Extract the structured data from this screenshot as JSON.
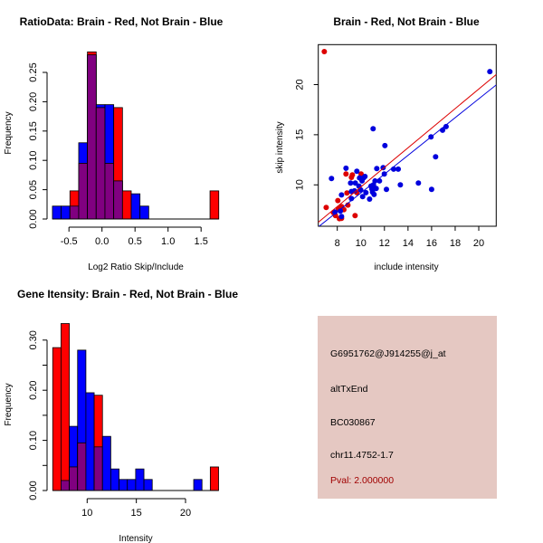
{
  "colors": {
    "blue": "#0000ff",
    "red": "#ff0000",
    "overlap": "#800080",
    "scatter_blue": "#0000dd",
    "scatter_red": "#dd0000",
    "panel": "#e5c8c2",
    "pval": "#a00000"
  },
  "chart_data": [
    {
      "type": "bar",
      "title": "RatioData: Brain - Red, Not Brain - Blue",
      "xlabel": "Log2 Ratio Skip/Include",
      "ylabel": "Frequency",
      "bin_start": -0.75,
      "bin_width": 0.1325,
      "xticks": [
        -0.5,
        0.0,
        0.5,
        1.0,
        1.5
      ],
      "xtick_labels": [
        "-0.5",
        "0.0",
        "0.5",
        "1.0",
        "1.5"
      ],
      "yticks": [
        0.0,
        0.05,
        0.1,
        0.15,
        0.2,
        0.25
      ],
      "ytick_labels": [
        "0.00",
        "0.05",
        "0.10",
        "0.15",
        "0.20",
        "0.25"
      ],
      "series": [
        {
          "name": "Not Brain",
          "color": "blue",
          "values": [
            0.022,
            0.022,
            0.022,
            0.13,
            0.28,
            0.195,
            0.195,
            0.065,
            0,
            0.043,
            0.022,
            0,
            0,
            0,
            0,
            0,
            0,
            0,
            0
          ]
        },
        {
          "name": "Brain",
          "color": "red",
          "values": [
            0,
            0,
            0.048,
            0.095,
            0.285,
            0.19,
            0.095,
            0.19,
            0.048,
            0,
            0,
            0,
            0,
            0,
            0,
            0,
            0,
            0,
            0.048
          ]
        }
      ]
    },
    {
      "type": "scatter",
      "title": "Brain - Red, Not Brain - Blue",
      "xlabel": "include intensity",
      "ylabel": "skip intensity",
      "xlim": [
        6.39,
        21.48
      ],
      "ylim": [
        5.87,
        23.99
      ],
      "xticks": [
        8,
        10,
        12,
        14,
        16,
        18,
        20
      ],
      "xtick_labels": [
        "8",
        "10",
        "12",
        "14",
        "16",
        "18",
        "20"
      ],
      "yticks": [
        10,
        15,
        20
      ],
      "ytick_labels": [
        "10",
        "15",
        "20"
      ],
      "lines": [
        {
          "name": "Brain fit",
          "color": "scatter_red",
          "intercept": 0.02,
          "slope": 0.977
        },
        {
          "name": "Not Brain fit",
          "color": "scatter_blue",
          "intercept": -0.2,
          "slope": 0.939
        }
      ],
      "series": [
        {
          "name": "Brain",
          "color": "scatter_red",
          "points": [
            [
              6.9,
              23.3
            ],
            [
              7.06,
              7.74
            ],
            [
              7.67,
              7.23
            ],
            [
              7.85,
              6.93
            ],
            [
              8.05,
              8.43
            ],
            [
              8.1,
              7.62
            ],
            [
              8.36,
              7.83
            ],
            [
              8.18,
              6.63
            ],
            [
              8.36,
              6.66
            ],
            [
              8.56,
              7.53
            ],
            [
              8.74,
              11.08
            ],
            [
              8.82,
              9.19
            ],
            [
              8.9,
              7.98
            ],
            [
              9.2,
              10.75
            ],
            [
              9.28,
              10.99
            ],
            [
              9.51,
              6.93
            ],
            [
              9.66,
              9.22
            ],
            [
              10.02,
              11.08
            ]
          ]
        },
        {
          "name": "Not Brain",
          "color": "scatter_blue",
          "points": [
            [
              7.51,
              10.63
            ],
            [
              7.8,
              7.29
            ],
            [
              8.26,
              7.38
            ],
            [
              8.36,
              6.84
            ],
            [
              8.36,
              9.0
            ],
            [
              8.74,
              11.66
            ],
            [
              9.13,
              10.18
            ],
            [
              9.2,
              8.64
            ],
            [
              9.2,
              9.34
            ],
            [
              9.46,
              9.4
            ],
            [
              9.53,
              10.18
            ],
            [
              9.66,
              11.36
            ],
            [
              9.84,
              9.88
            ],
            [
              9.89,
              10.69
            ],
            [
              9.99,
              9.49
            ],
            [
              10.1,
              10.39
            ],
            [
              10.15,
              8.83
            ],
            [
              10.22,
              10.69
            ],
            [
              10.35,
              10.84
            ],
            [
              10.43,
              9.22
            ],
            [
              10.74,
              8.58
            ],
            [
              10.86,
              9.88
            ],
            [
              10.94,
              9.58
            ],
            [
              10.99,
              9.28
            ],
            [
              11.04,
              15.6
            ],
            [
              11.07,
              10.0
            ],
            [
              11.12,
              9.04
            ],
            [
              11.2,
              10.39
            ],
            [
              11.3,
              9.64
            ],
            [
              11.35,
              11.63
            ],
            [
              11.58,
              10.39
            ],
            [
              11.89,
              11.72
            ],
            [
              11.99,
              11.08
            ],
            [
              12.04,
              13.92
            ],
            [
              12.17,
              9.55
            ],
            [
              12.78,
              11.57
            ],
            [
              13.17,
              11.57
            ],
            [
              13.35,
              10.0
            ],
            [
              14.88,
              10.18
            ],
            [
              15.95,
              14.79
            ],
            [
              16.0,
              9.55
            ],
            [
              16.34,
              12.8
            ],
            [
              16.93,
              15.45
            ],
            [
              17.23,
              15.81
            ],
            [
              20.94,
              21.3
            ]
          ]
        }
      ]
    },
    {
      "type": "bar",
      "title": "Gene Itensity: Brain - Red, Not Brain - Blue",
      "xlabel": "Intensity",
      "ylabel": "Frequency",
      "bin_start": 6.5,
      "bin_width": 0.843,
      "xticks": [
        10,
        15,
        20
      ],
      "xtick_labels": [
        "10",
        "15",
        "20"
      ],
      "yticks": [
        0.0,
        0.05,
        0.1,
        0.15,
        0.2,
        0.25,
        0.3
      ],
      "ytick_labels": [
        "0.00",
        "",
        "0.10",
        "",
        "0.20",
        "",
        "0.30"
      ],
      "series": [
        {
          "name": "Not Brain",
          "color": "blue",
          "values": [
            0,
            0.02,
            0.128,
            0.28,
            0.195,
            0.087,
            0.108,
            0.043,
            0.022,
            0.022,
            0.043,
            0.022,
            0,
            0,
            0,
            0,
            0,
            0.022,
            0,
            0
          ]
        },
        {
          "name": "Brain",
          "color": "red",
          "values": [
            0.285,
            0.333,
            0.047,
            0.095,
            0,
            0.19,
            0,
            0,
            0,
            0,
            0,
            0,
            0,
            0,
            0,
            0,
            0,
            0,
            0,
            0.047
          ]
        }
      ]
    }
  ],
  "info_panel": {
    "probe_id": "G6951762@J914255@j_at",
    "event_type": "altTxEnd",
    "accession": "BC030867",
    "location": "chr11.4752-1.7",
    "pval": "Pval: 2.000000"
  }
}
